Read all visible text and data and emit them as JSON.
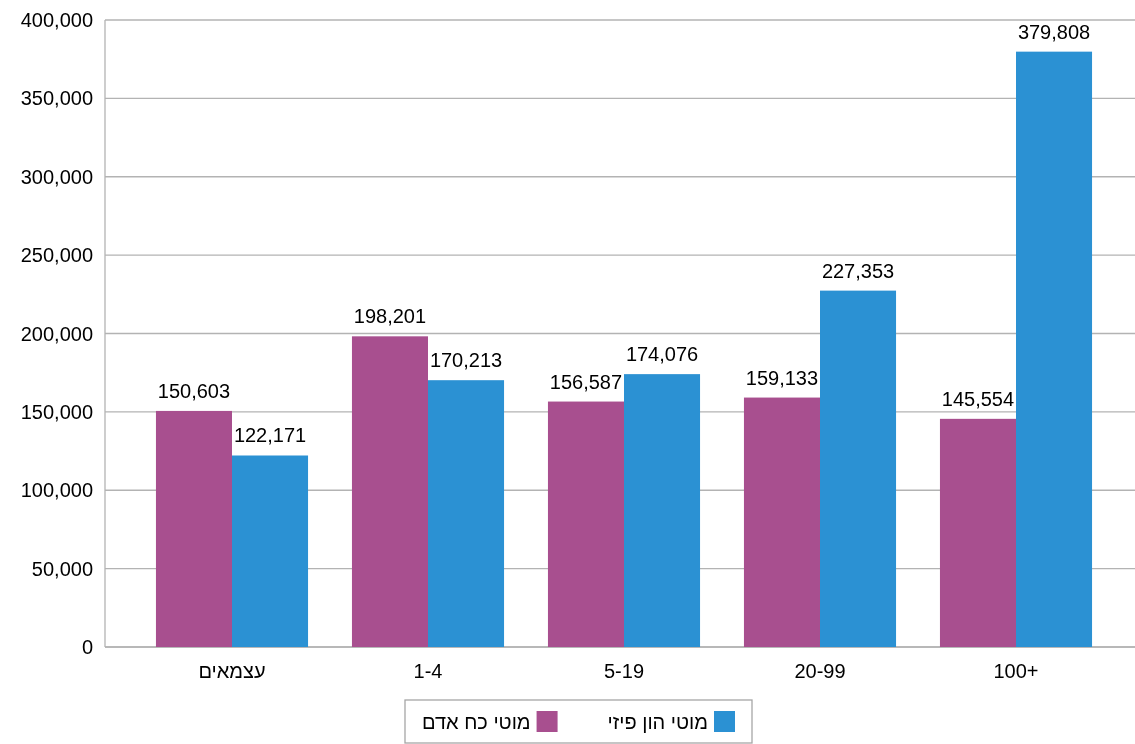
{
  "chart_data": {
    "type": "bar",
    "categories": [
      "עצמאים",
      "1-4",
      "5-19",
      "20-99",
      "100+"
    ],
    "series": [
      {
        "name": "מוטי כח אדם",
        "color": "#a84f8f",
        "values": [
          150603,
          198201,
          156587,
          159133,
          145554
        ],
        "value_labels": [
          "150,603",
          "198,201",
          "156,587",
          "159,133",
          "145,554"
        ]
      },
      {
        "name": "מוטי הון פיזי",
        "color": "#2b91d3",
        "values": [
          122171,
          170213,
          174076,
          227353,
          379808
        ],
        "value_labels": [
          "122,171",
          "170,213",
          "174,076",
          "227,353",
          "379,808"
        ]
      }
    ],
    "ylim": [
      0,
      400000
    ],
    "yticks": [
      {
        "value": 0,
        "label": "0"
      },
      {
        "value": 50000,
        "label": "50,000"
      },
      {
        "value": 100000,
        "label": "100,000"
      },
      {
        "value": 150000,
        "label": "150,000"
      },
      {
        "value": 200000,
        "label": "200,000"
      },
      {
        "value": 250000,
        "label": "250,000"
      },
      {
        "value": 300000,
        "label": "300,000"
      },
      {
        "value": 350000,
        "label": "350,000"
      },
      {
        "value": 400000,
        "label": "400,000"
      }
    ],
    "grid": "y",
    "legend": "bottom"
  }
}
